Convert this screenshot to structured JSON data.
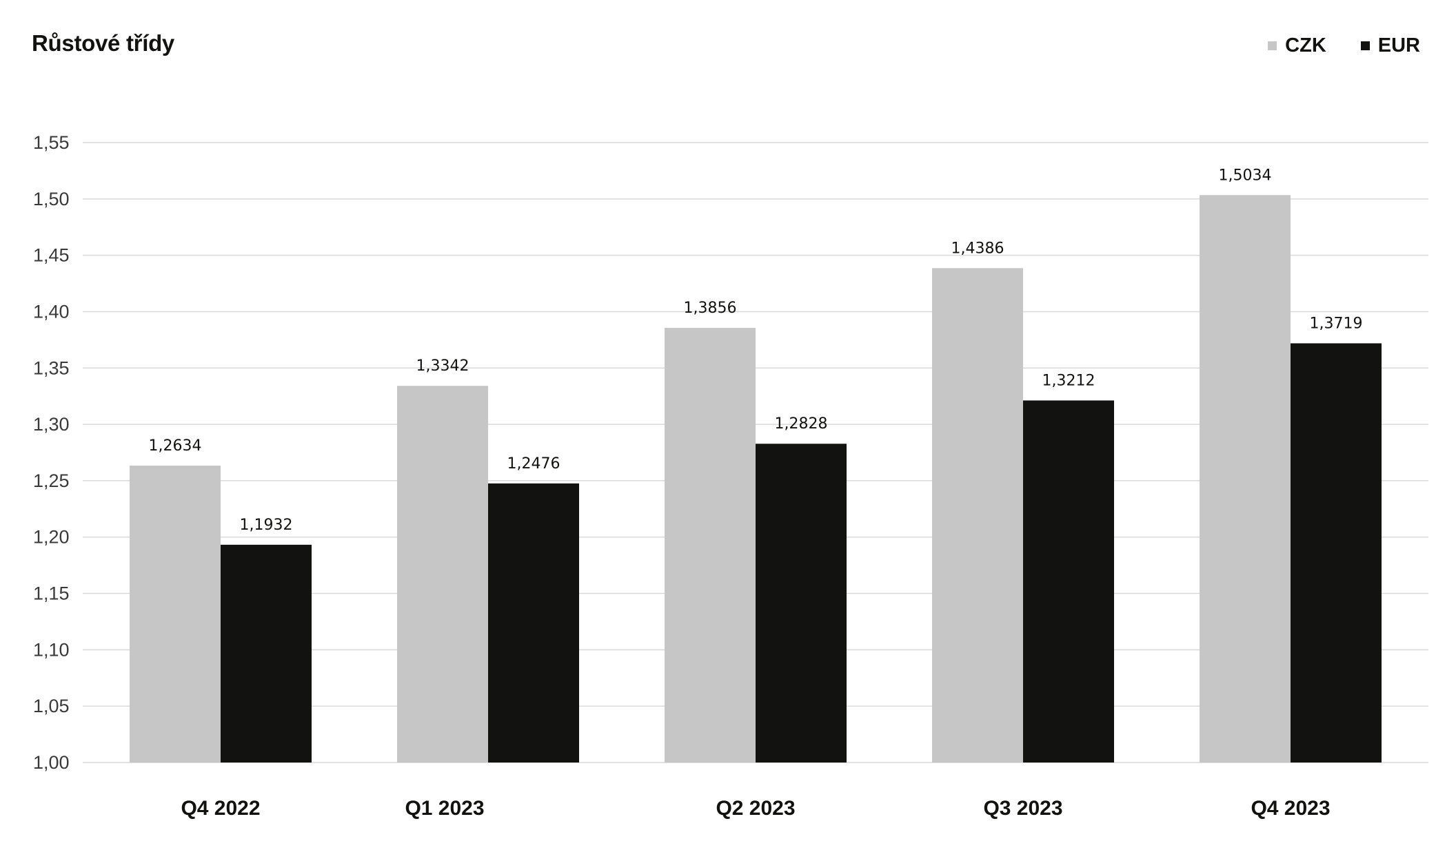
{
  "chart_data": {
    "type": "bar",
    "title": "Růstové třídy",
    "xlabel": "",
    "ylabel": "",
    "categories": [
      "Q4 2022",
      "Q1 2023",
      "Q2 2023",
      "Q3 2023",
      "Q4 2023"
    ],
    "series": [
      {
        "name": "CZK",
        "color": "#c6c6c6",
        "values": [
          1.2634,
          1.3342,
          1.3856,
          1.4386,
          1.5034
        ],
        "labels": [
          "1,2634",
          "1,3342",
          "1,3856",
          "1,4386",
          "1,5034"
        ]
      },
      {
        "name": "EUR",
        "color": "#121210",
        "values": [
          1.1932,
          1.2476,
          1.2828,
          1.3212,
          1.3719
        ],
        "labels": [
          "1,1932",
          "1,2476",
          "1,2828",
          "1,3212",
          "1,3719"
        ]
      }
    ],
    "ylim": [
      1.0,
      1.55
    ],
    "yticks": [
      1.0,
      1.05,
      1.1,
      1.15,
      1.2,
      1.25,
      1.3,
      1.35,
      1.4,
      1.45,
      1.5,
      1.55
    ],
    "ytick_labels": [
      "1,00",
      "1,05",
      "1,10",
      "1,15",
      "1,20",
      "1,25",
      "1,30",
      "1,35",
      "1,40",
      "1,45",
      "1,50",
      "1,55"
    ],
    "grid": true,
    "grid_color": "#d9d9d9",
    "legend_position": "top-right"
  }
}
